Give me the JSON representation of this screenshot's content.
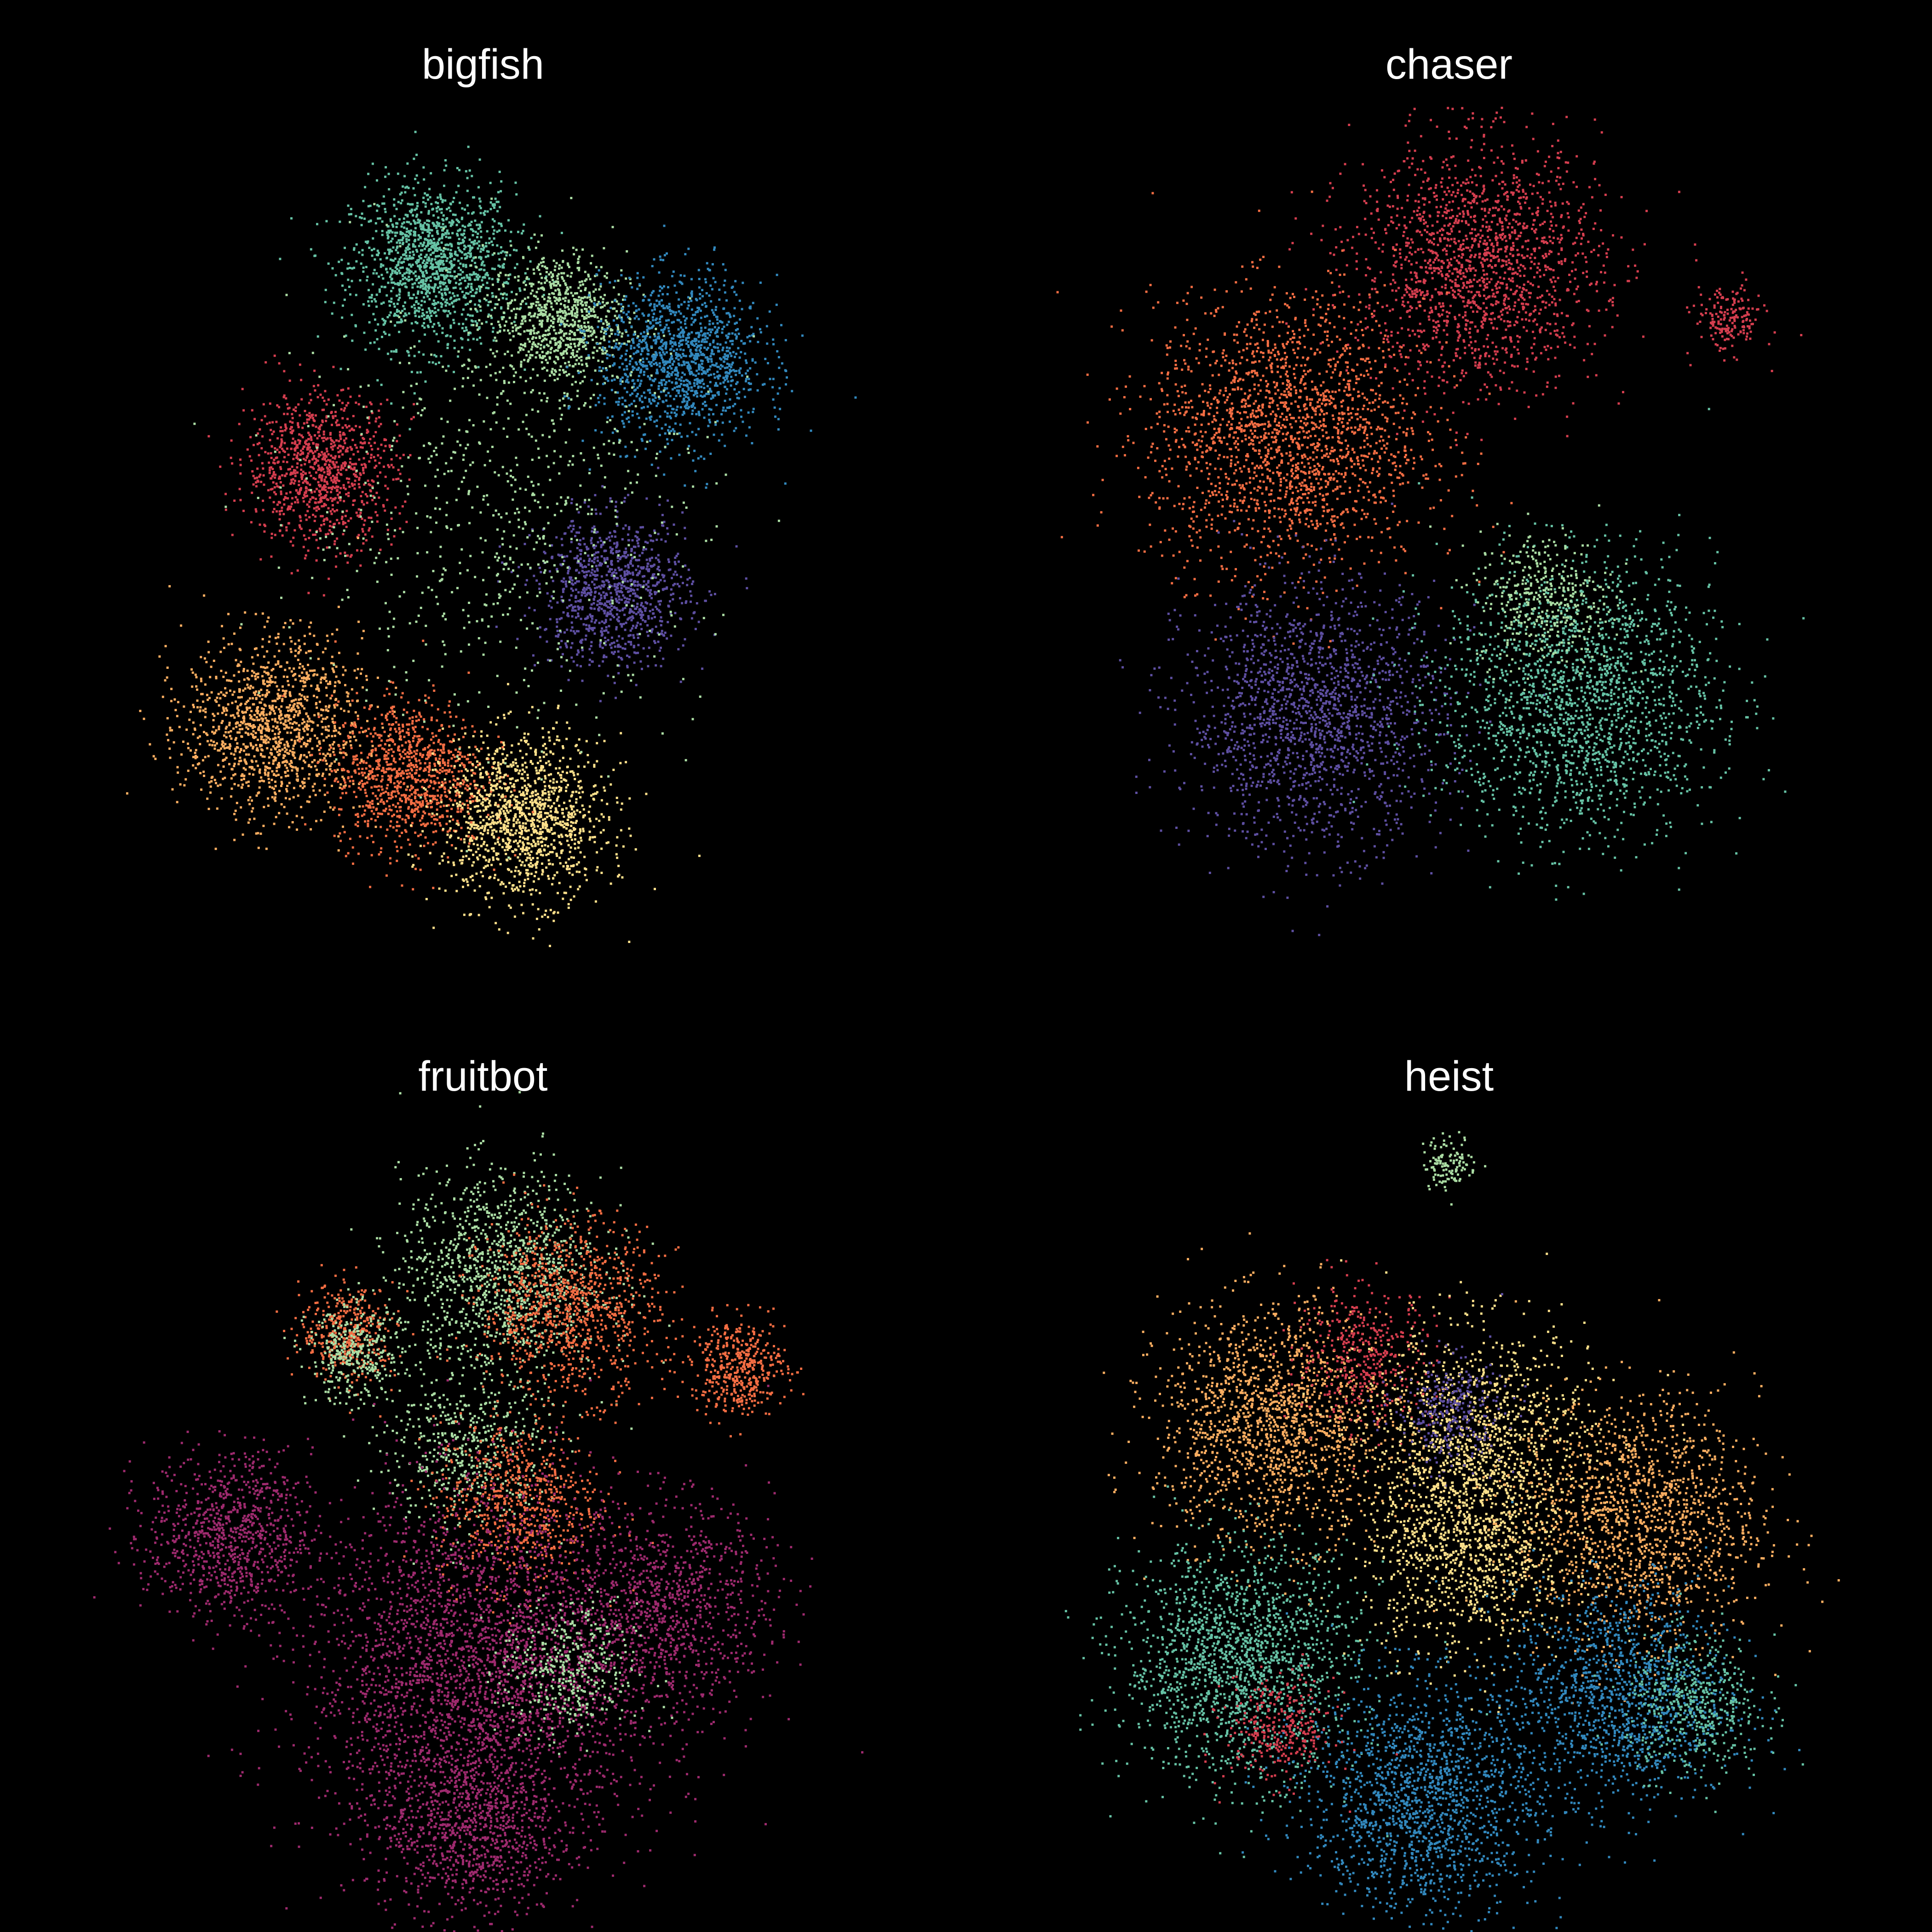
{
  "page": {
    "background": "#000000"
  },
  "palette": {
    "red": "#d53e4f",
    "orange": "#f46d43",
    "light_orange": "#fdae61",
    "yellow": "#fee08b",
    "light_green": "#abdda4",
    "teal": "#66c2a5",
    "blue": "#3288bd",
    "purple": "#5e4fa2",
    "magenta": "#9e2a6e"
  },
  "chart_data": [
    {
      "type": "scatter",
      "title": "bigfish",
      "xlabel": "",
      "ylabel": "",
      "grid": false,
      "legend": "none",
      "clusters": [
        {
          "color": "teal",
          "cx": -0.15,
          "cy": 0.78,
          "sd": 0.12,
          "n": 1400
        },
        {
          "color": "light_green",
          "cx": 0.22,
          "cy": 0.62,
          "sd": 0.1,
          "n": 900
        },
        {
          "color": "blue",
          "cx": 0.58,
          "cy": 0.5,
          "sd": 0.12,
          "n": 1300
        },
        {
          "color": "red",
          "cx": -0.48,
          "cy": 0.18,
          "sd": 0.11,
          "n": 1000
        },
        {
          "color": "purple",
          "cx": 0.38,
          "cy": -0.18,
          "sd": 0.11,
          "n": 1000
        },
        {
          "color": "light_orange",
          "cx": -0.62,
          "cy": -0.58,
          "sd": 0.13,
          "n": 1300
        },
        {
          "color": "orange",
          "cx": -0.22,
          "cy": -0.72,
          "sd": 0.11,
          "n": 1000
        },
        {
          "color": "yellow",
          "cx": 0.12,
          "cy": -0.85,
          "sd": 0.12,
          "n": 1300
        },
        {
          "color": "light_green",
          "cx": 0.05,
          "cy": 0.05,
          "sd": 0.3,
          "n": 700
        }
      ]
    },
    {
      "type": "scatter",
      "title": "chaser",
      "xlabel": "",
      "ylabel": "",
      "grid": false,
      "legend": "none",
      "clusters": [
        {
          "color": "red",
          "cx": 0.08,
          "cy": 0.78,
          "sd": 0.18,
          "n": 1700
        },
        {
          "color": "orange",
          "cx": -0.48,
          "cy": 0.28,
          "sd": 0.2,
          "n": 2000
        },
        {
          "color": "red",
          "cx": 0.82,
          "cy": 0.62,
          "sd": 0.05,
          "n": 180
        },
        {
          "color": "purple",
          "cx": -0.4,
          "cy": -0.55,
          "sd": 0.19,
          "n": 1700
        },
        {
          "color": "teal",
          "cx": 0.38,
          "cy": -0.5,
          "sd": 0.2,
          "n": 1900
        },
        {
          "color": "light_green",
          "cx": 0.28,
          "cy": -0.2,
          "sd": 0.1,
          "n": 400
        }
      ]
    },
    {
      "type": "scatter",
      "title": "fruitbot",
      "xlabel": "",
      "ylabel": "",
      "grid": false,
      "legend": "none",
      "clusters": [
        {
          "color": "light_green",
          "cx": 0.05,
          "cy": 0.72,
          "sd": 0.15,
          "n": 1200
        },
        {
          "color": "orange",
          "cx": 0.25,
          "cy": 0.62,
          "sd": 0.13,
          "n": 1000
        },
        {
          "color": "orange",
          "cx": -0.4,
          "cy": 0.55,
          "sd": 0.07,
          "n": 400
        },
        {
          "color": "light_green",
          "cx": -0.38,
          "cy": 0.48,
          "sd": 0.07,
          "n": 350
        },
        {
          "color": "orange",
          "cx": 0.75,
          "cy": 0.45,
          "sd": 0.07,
          "n": 450
        },
        {
          "color": "light_green",
          "cx": -0.05,
          "cy": 0.2,
          "sd": 0.12,
          "n": 500
        },
        {
          "color": "magenta",
          "cx": -0.75,
          "cy": -0.05,
          "sd": 0.12,
          "n": 900
        },
        {
          "color": "orange",
          "cx": 0.1,
          "cy": 0.05,
          "sd": 0.12,
          "n": 700
        },
        {
          "color": "magenta",
          "cx": 0.0,
          "cy": -0.45,
          "sd": 0.26,
          "n": 3200
        },
        {
          "color": "magenta",
          "cx": 0.55,
          "cy": -0.25,
          "sd": 0.15,
          "n": 900
        },
        {
          "color": "light_green",
          "cx": 0.25,
          "cy": -0.45,
          "sd": 0.1,
          "n": 400
        },
        {
          "color": "magenta",
          "cx": -0.05,
          "cy": -0.92,
          "sd": 0.13,
          "n": 800
        }
      ]
    },
    {
      "type": "scatter",
      "title": "heist",
      "xlabel": "",
      "ylabel": "",
      "grid": false,
      "legend": "none",
      "clusters": [
        {
          "color": "light_green",
          "cx": 0.0,
          "cy": 1.05,
          "sd": 0.04,
          "n": 120
        },
        {
          "color": "light_orange",
          "cx": -0.52,
          "cy": 0.28,
          "sd": 0.17,
          "n": 1600
        },
        {
          "color": "red",
          "cx": -0.25,
          "cy": 0.48,
          "sd": 0.1,
          "n": 400
        },
        {
          "color": "yellow",
          "cx": 0.08,
          "cy": 0.22,
          "sd": 0.17,
          "n": 1200
        },
        {
          "color": "purple",
          "cx": 0.0,
          "cy": 0.32,
          "sd": 0.08,
          "n": 300
        },
        {
          "color": "light_orange",
          "cx": 0.55,
          "cy": 0.0,
          "sd": 0.18,
          "n": 1500
        },
        {
          "color": "yellow",
          "cx": 0.05,
          "cy": -0.1,
          "sd": 0.15,
          "n": 900
        },
        {
          "color": "teal",
          "cx": -0.62,
          "cy": -0.42,
          "sd": 0.17,
          "n": 1700
        },
        {
          "color": "blue",
          "cx": -0.08,
          "cy": -0.82,
          "sd": 0.17,
          "n": 1600
        },
        {
          "color": "blue",
          "cx": 0.5,
          "cy": -0.52,
          "sd": 0.16,
          "n": 1300
        },
        {
          "color": "teal",
          "cx": 0.72,
          "cy": -0.55,
          "sd": 0.1,
          "n": 500
        },
        {
          "color": "red",
          "cx": -0.5,
          "cy": -0.62,
          "sd": 0.08,
          "n": 300
        }
      ]
    }
  ]
}
